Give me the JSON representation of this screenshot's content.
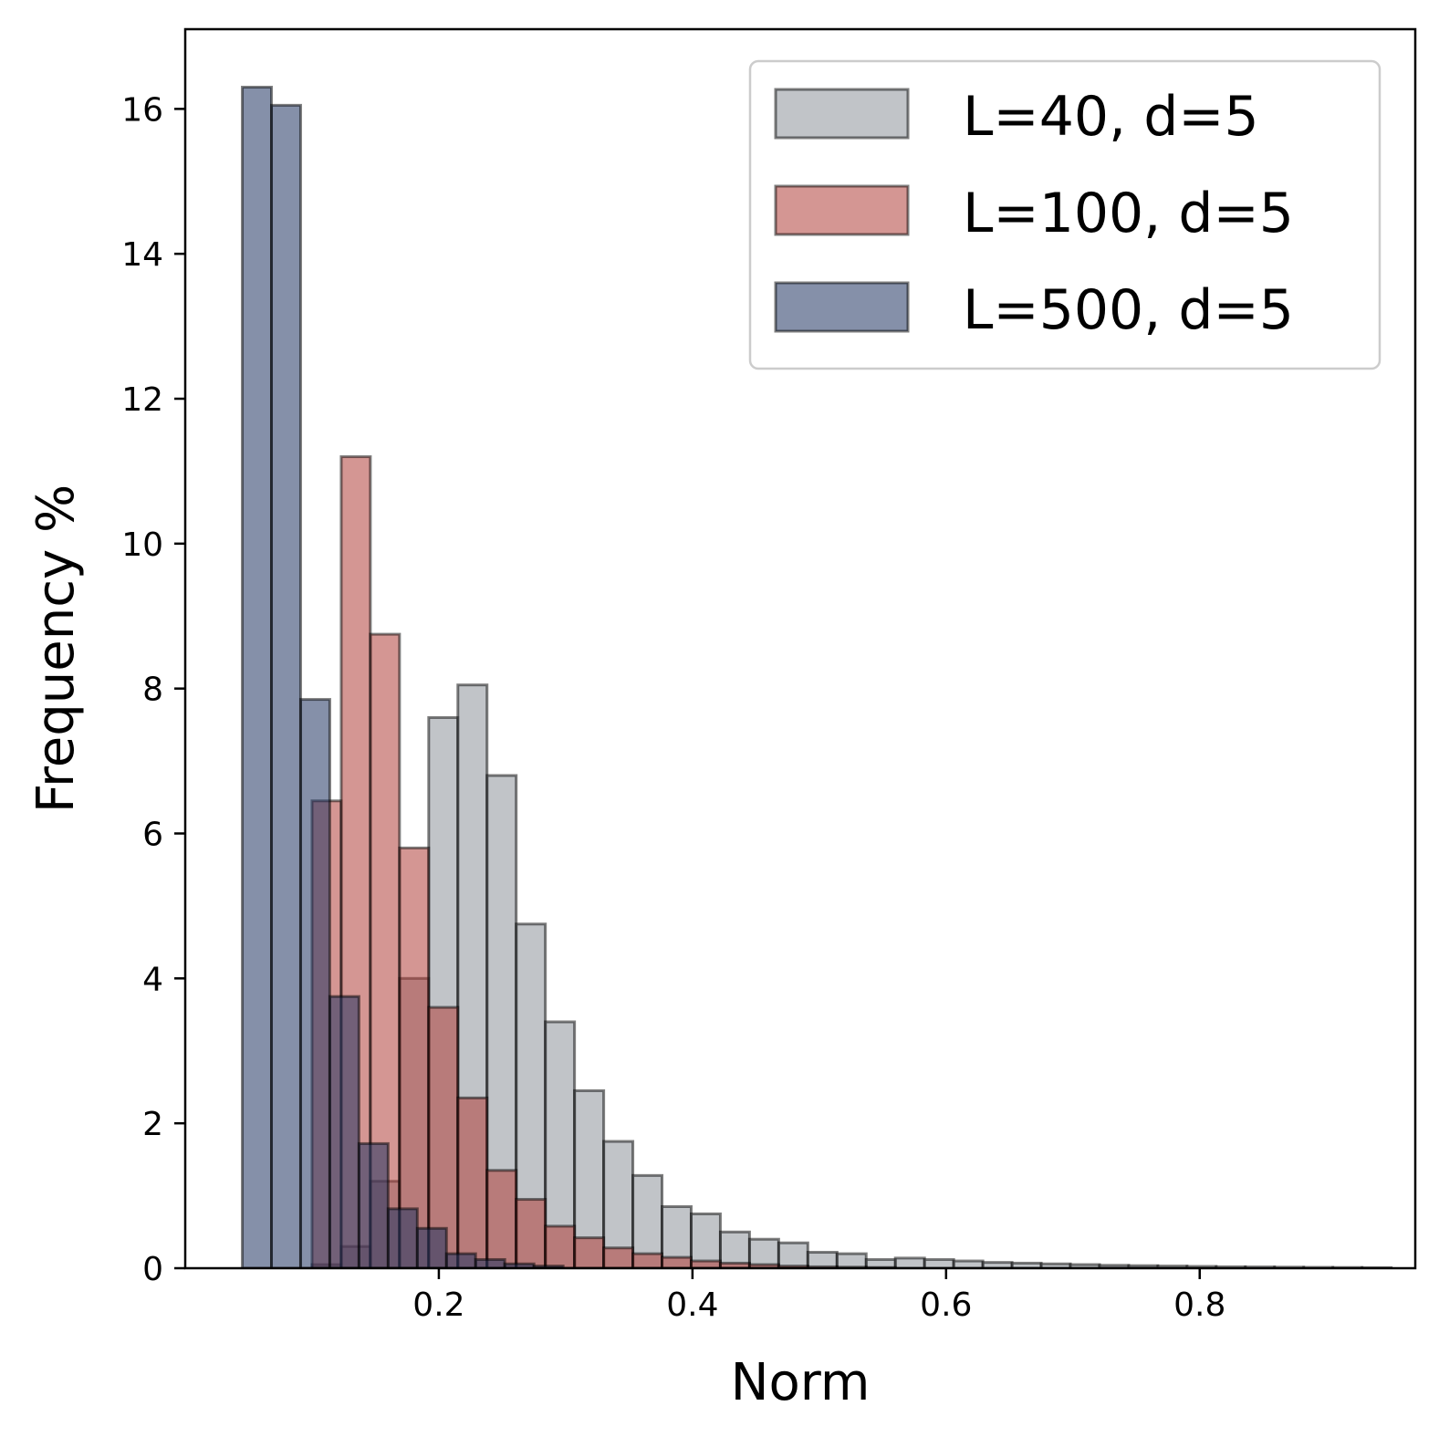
{
  "chart_data": {
    "type": "bar",
    "subtype": "overlaid-histogram",
    "xlabel": "Norm",
    "ylabel": "Frequency %",
    "xlim": [
      0.0,
      0.97
    ],
    "ylim": [
      0,
      17.1
    ],
    "xticks": [
      0.2,
      0.4,
      0.6,
      0.8
    ],
    "xtick_labels": [
      "0.2",
      "0.4",
      "0.6",
      "0.8"
    ],
    "yticks": [
      0,
      2,
      4,
      6,
      8,
      10,
      12,
      14,
      16
    ],
    "ytick_labels": [
      "0",
      "2",
      "4",
      "6",
      "8",
      "10",
      "12",
      "14",
      "16"
    ],
    "legend_position": "top-right",
    "series": [
      {
        "name": "L=40, d=5",
        "color": "#8e949a",
        "bin_edges": [
          0.1,
          0.123,
          0.146,
          0.169,
          0.192,
          0.215,
          0.238,
          0.261,
          0.284,
          0.307,
          0.33,
          0.353,
          0.376,
          0.399,
          0.422,
          0.445,
          0.468,
          0.491,
          0.514,
          0.537,
          0.56,
          0.583,
          0.606,
          0.629,
          0.652,
          0.675,
          0.698,
          0.721,
          0.744,
          0.767,
          0.79,
          0.813,
          0.836,
          0.859,
          0.882,
          0.905,
          0.928,
          0.951
        ],
        "values": [
          0.05,
          0.3,
          1.2,
          4.0,
          7.6,
          8.05,
          6.8,
          4.75,
          3.4,
          2.45,
          1.75,
          1.28,
          0.85,
          0.75,
          0.5,
          0.4,
          0.35,
          0.22,
          0.2,
          0.12,
          0.14,
          0.12,
          0.1,
          0.08,
          0.07,
          0.06,
          0.05,
          0.04,
          0.035,
          0.03,
          0.025,
          0.02,
          0.018,
          0.015,
          0.012,
          0.01,
          0.008
        ]
      },
      {
        "name": "L=100, d=5",
        "color": "#b0403b",
        "bin_edges": [
          0.1,
          0.123,
          0.146,
          0.169,
          0.192,
          0.215,
          0.238,
          0.261,
          0.284,
          0.307,
          0.33,
          0.353,
          0.376,
          0.399,
          0.422,
          0.445,
          0.468,
          0.491,
          0.514,
          0.537,
          0.56
        ],
        "values": [
          6.45,
          11.2,
          8.75,
          5.8,
          3.6,
          2.35,
          1.35,
          0.95,
          0.58,
          0.42,
          0.28,
          0.2,
          0.15,
          0.1,
          0.07,
          0.05,
          0.03,
          0.02,
          0.015,
          0.01
        ]
      },
      {
        "name": "L=500, d=5",
        "color": "#203462",
        "bin_edges": [
          0.045,
          0.068,
          0.091,
          0.114,
          0.137,
          0.16,
          0.183,
          0.206,
          0.229,
          0.252,
          0.275,
          0.298
        ],
        "values": [
          16.3,
          16.05,
          7.85,
          3.75,
          1.72,
          0.82,
          0.55,
          0.2,
          0.12,
          0.06,
          0.03
        ]
      }
    ]
  }
}
